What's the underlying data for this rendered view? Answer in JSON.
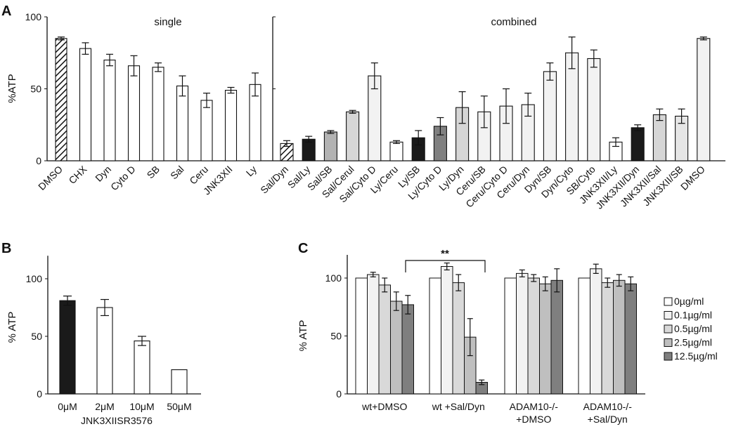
{
  "chart_data": [
    {
      "panel": "A",
      "type": "bar",
      "subtitle": "single",
      "ylabel": "%ATP",
      "ylim": [
        0,
        100
      ],
      "yticks": [
        "0",
        "50",
        "100"
      ],
      "categories": [
        "DMSO",
        "CHX",
        "Dyn",
        "Cyto D",
        "SB",
        "Sal",
        "Ceru",
        "JNK3XII",
        "Ly"
      ],
      "values": [
        85,
        78,
        70,
        66,
        65,
        52,
        42,
        49,
        53
      ],
      "errors": [
        1,
        4,
        4,
        7,
        3,
        7,
        5,
        2,
        8
      ],
      "fills": [
        "hatch",
        "#ffffff",
        "#ffffff",
        "#ffffff",
        "#ffffff",
        "#ffffff",
        "#ffffff",
        "#ffffff",
        "#ffffff"
      ]
    },
    {
      "panel": "A",
      "type": "bar",
      "subtitle": "combined",
      "ylim": [
        0,
        100
      ],
      "categories": [
        "Sal/Dyn",
        "Sal/Ly",
        "Sal/SB",
        "Sal/Cerul",
        "Sal/Cyto D",
        "Ly/Ceru",
        "Ly/SB",
        "Ly/Cyto D",
        "Ly/Dyn",
        "Ceru/SB",
        "Ceru/Cyto D",
        "Ceru/Dyn",
        "Dyn/SB",
        "Dyn/Cyto",
        "SB/Cyto",
        "JNK3XII/Ly",
        "JNK3XII/Dyn",
        "JNK3XII/Sal",
        "JNK3XII/SB",
        "DMSO"
      ],
      "values": [
        12,
        15,
        20,
        34,
        59,
        13,
        16,
        24,
        37,
        34,
        38,
        39,
        62,
        75,
        71,
        13,
        23,
        32,
        31,
        85
      ],
      "errors": [
        2,
        2,
        1,
        1,
        9,
        1,
        5,
        6,
        11,
        11,
        12,
        8,
        6,
        11,
        6,
        3,
        2,
        4,
        5,
        1
      ],
      "fills": [
        "hatch",
        "#1a1a1a",
        "#b3b3b3",
        "#d6d6d6",
        "#f2f2f2",
        "#ffffff",
        "#1a1a1a",
        "#808080",
        "#d6d6d6",
        "#f2f2f2",
        "#f2f2f2",
        "#f2f2f2",
        "#f2f2f2",
        "#f2f2f2",
        "#f2f2f2",
        "#ffffff",
        "#1a1a1a",
        "#d6d6d6",
        "#e6e6e6",
        "#f2f2f2"
      ]
    },
    {
      "panel": "B",
      "type": "bar",
      "ylabel": "% ATP",
      "xlabel": "JNK3XIISR3576",
      "ylim": [
        0,
        120
      ],
      "yticks": [
        "0",
        "50",
        "100"
      ],
      "categories": [
        "0μM",
        "2μM",
        "10μM",
        "50μM"
      ],
      "values": [
        81,
        75,
        46,
        21
      ],
      "errors": [
        4,
        7,
        4,
        0
      ],
      "fills": [
        "#1a1a1a",
        "#ffffff",
        "#ffffff",
        "#ffffff"
      ]
    },
    {
      "panel": "C",
      "type": "bar",
      "ylabel": "% ATP",
      "ylim": [
        0,
        120
      ],
      "yticks": [
        "0",
        "50",
        "100"
      ],
      "categories": [
        "wt+DMSO",
        "wt +Sal/Dyn",
        "ADAM10-/-\n+DMSO",
        "ADAM10-/-\n+Sal/Dyn"
      ],
      "annotation": "**",
      "series": [
        {
          "name": "0µg/ml",
          "color": "#ffffff",
          "values": [
            100,
            100,
            100,
            100
          ],
          "errors": [
            0,
            0,
            0,
            0
          ]
        },
        {
          "name": "0.1µg/ml",
          "color": "#f2f2f2",
          "values": [
            103,
            110,
            104,
            108
          ],
          "errors": [
            2,
            3,
            3,
            4
          ]
        },
        {
          "name": "0.5µg/ml",
          "color": "#d9d9d9",
          "values": [
            94,
            96,
            100,
            96
          ],
          "errors": [
            6,
            7,
            3,
            4
          ]
        },
        {
          "name": "2.5µg/ml",
          "color": "#bfbfbf",
          "values": [
            80,
            49,
            95,
            98
          ],
          "errors": [
            8,
            16,
            6,
            5
          ]
        },
        {
          "name": "12.5µg/ml",
          "color": "#7f7f7f",
          "values": [
            77,
            10,
            98,
            95
          ],
          "errors": [
            8,
            2,
            10,
            6
          ]
        }
      ]
    }
  ],
  "panels": {
    "a": "A",
    "b": "B",
    "c": "C"
  }
}
